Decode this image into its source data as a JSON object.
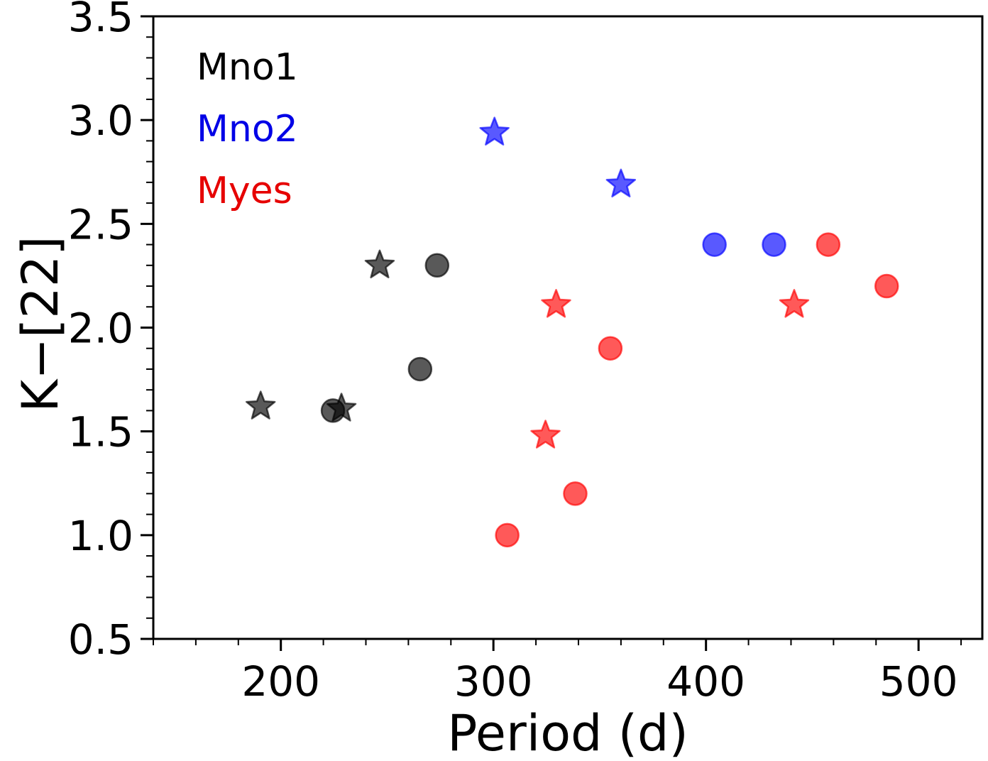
{
  "chart_data": {
    "type": "scatter",
    "title": "",
    "xlabel": "Period (d)",
    "ylabel": "K−[22]",
    "xlim": [
      140,
      530
    ],
    "ylim": [
      0.5,
      3.5
    ],
    "xticks": [
      200,
      300,
      400,
      500
    ],
    "yticks": [
      0.5,
      1.0,
      1.5,
      2.0,
      2.5,
      3.0,
      3.5
    ],
    "xtick_labels": [
      "200",
      "300",
      "400",
      "500"
    ],
    "ytick_labels": [
      "0.5",
      "1.0",
      "1.5",
      "2.0",
      "2.5",
      "3.0",
      "3.5"
    ],
    "x_minor_step": 20,
    "y_minor_step": 0.1,
    "grid": false,
    "legend_position": "top-left",
    "series": [
      {
        "name": "Mno1",
        "color": "#000000",
        "label_color": "#000000",
        "opacity": 0.65,
        "circles": [
          [
            224.5,
            1.6
          ],
          [
            265.5,
            1.8
          ],
          [
            273.5,
            2.3
          ]
        ],
        "stars": [
          [
            190.5,
            1.62
          ],
          [
            228.5,
            1.61
          ],
          [
            246.5,
            2.3
          ]
        ]
      },
      {
        "name": "Mno2",
        "color": "#0000ff",
        "label_color": "#0000e6",
        "opacity": 0.65,
        "circles": [
          [
            404,
            2.4
          ],
          [
            432,
            2.4
          ]
        ],
        "stars": [
          [
            300.5,
            2.94
          ],
          [
            360,
            2.69
          ]
        ]
      },
      {
        "name": "Myes",
        "color": "#ff0000",
        "label_color": "#e60000",
        "opacity": 0.65,
        "circles": [
          [
            306.5,
            1.0
          ],
          [
            338.5,
            1.2
          ],
          [
            355,
            1.9
          ],
          [
            457.5,
            2.4
          ],
          [
            485,
            2.2
          ]
        ],
        "stars": [
          [
            324.5,
            1.48
          ],
          [
            329.5,
            2.11
          ],
          [
            441.5,
            2.11
          ]
        ]
      }
    ]
  }
}
